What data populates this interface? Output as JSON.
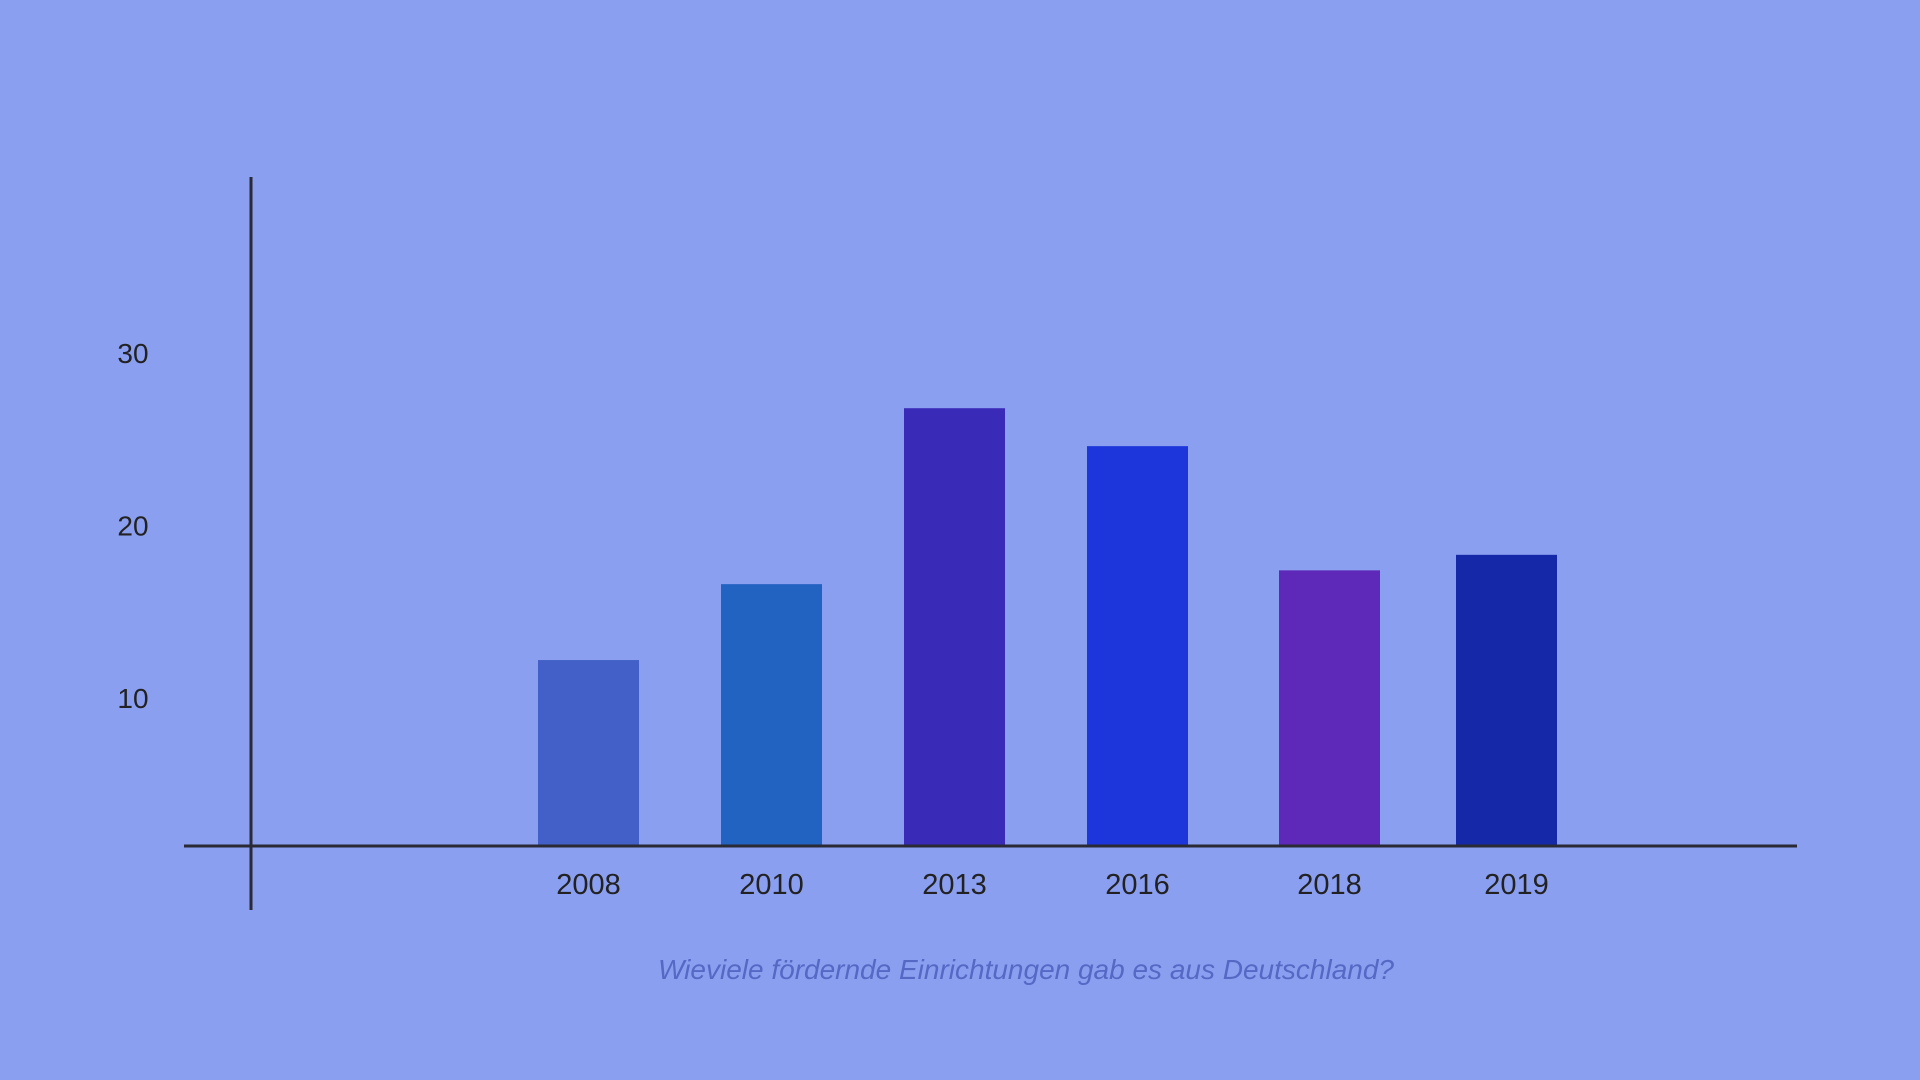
{
  "chart_data": {
    "type": "bar",
    "title": "",
    "caption": "Wieviele fördernde Einrichtungen gab es aus Deutschland?",
    "xlabel": "",
    "ylabel": "",
    "categories": [
      "2008",
      "2010",
      "2013",
      "2016",
      "2018",
      "2019"
    ],
    "values": [
      12.2,
      16.6,
      26.8,
      24.6,
      17.4,
      18.3
    ],
    "colors": [
      "#4260c8",
      "#2262c0",
      "#3a2ab8",
      "#1c36dc",
      "#5e28b8",
      "#1428a8"
    ],
    "yticks": [
      10,
      20,
      30
    ],
    "ytick_labels": [
      "10",
      "20",
      "30"
    ],
    "ylim": [
      0,
      38
    ],
    "grid": false,
    "background": "#8b9ff1"
  }
}
